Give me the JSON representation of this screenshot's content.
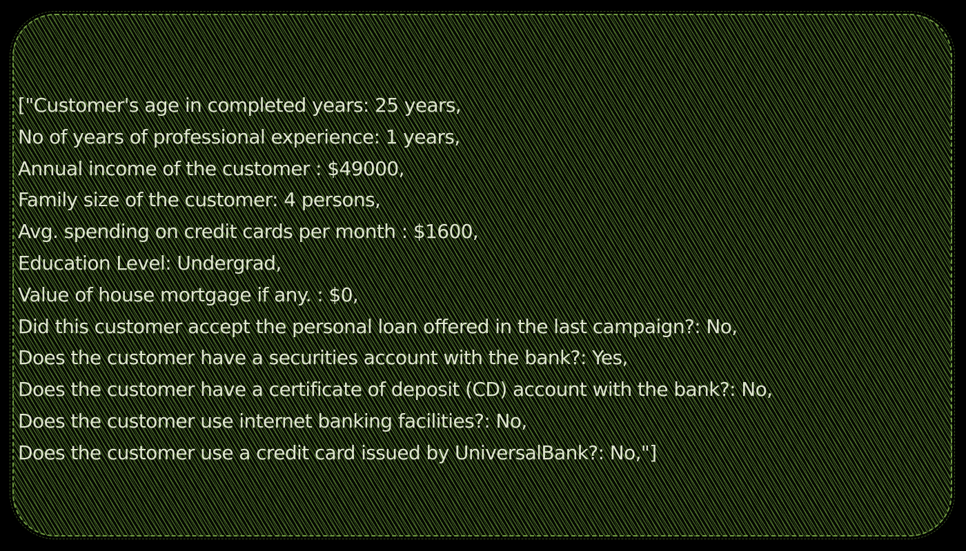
{
  "card": {
    "lines": [
      "[\"Customer's age in completed years: 25 years,",
      "No of years of professional experience: 1 years,",
      "Annual income of the customer : $49000,",
      "Family size of the customer: 4 persons,",
      "Avg. spending on credit cards per month : $1600,",
      "Education Level: Undergrad,",
      "Value of house mortgage if any. : $0,",
      "Did this customer accept the personal loan offered in the last campaign?: No,",
      "Does the customer have a securities account with the bank?: Yes,",
      "Does the customer have a certificate of deposit (CD) account with the bank?: No,",
      "Does the customer use internet banking facilities?: No,",
      "Does the customer use a credit card issued by UniversalBank?: No,\"]"
    ]
  },
  "colors": {
    "background": "#000000",
    "hatch": "#689638",
    "border": "#6f9a3f",
    "text": "#dfe6cf"
  }
}
